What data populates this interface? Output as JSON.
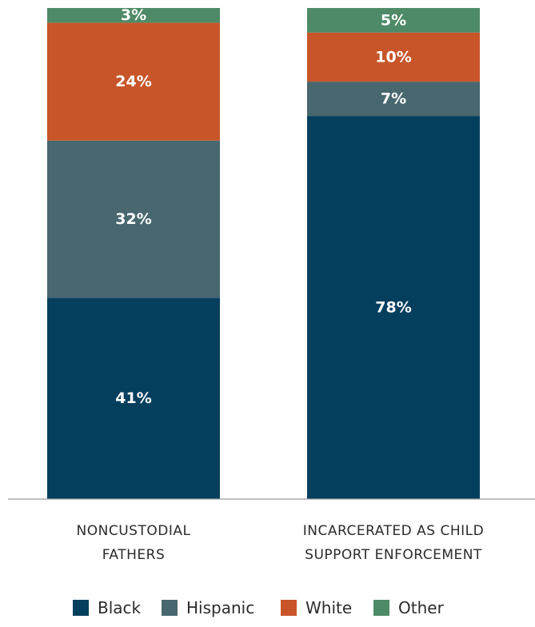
{
  "chart_data": {
    "type": "bar",
    "stacked": true,
    "categories": [
      [
        "NONCUSTODIAL",
        "FATHERS"
      ],
      [
        "INCARCERATED AS CHILD",
        "SUPPORT ENFORCEMENT"
      ]
    ],
    "series": [
      {
        "name": "Black",
        "color": "#053f5e",
        "values": [
          41,
          78
        ]
      },
      {
        "name": "Hispanic",
        "color": "#48676f",
        "values": [
          32,
          7
        ]
      },
      {
        "name": "White",
        "color": "#c8552a",
        "values": [
          24,
          10
        ]
      },
      {
        "name": "Other",
        "color": "#4e8a67",
        "values": [
          3,
          5
        ]
      }
    ],
    "data_labels": [
      [
        "41%",
        "78%"
      ],
      [
        "32%",
        "7%"
      ],
      [
        "24%",
        "10%"
      ],
      [
        "3%",
        "5%"
      ]
    ],
    "ylim": [
      0,
      100
    ],
    "grid": false,
    "legend_position": "bottom",
    "title": "",
    "xlabel": "",
    "ylabel": ""
  }
}
